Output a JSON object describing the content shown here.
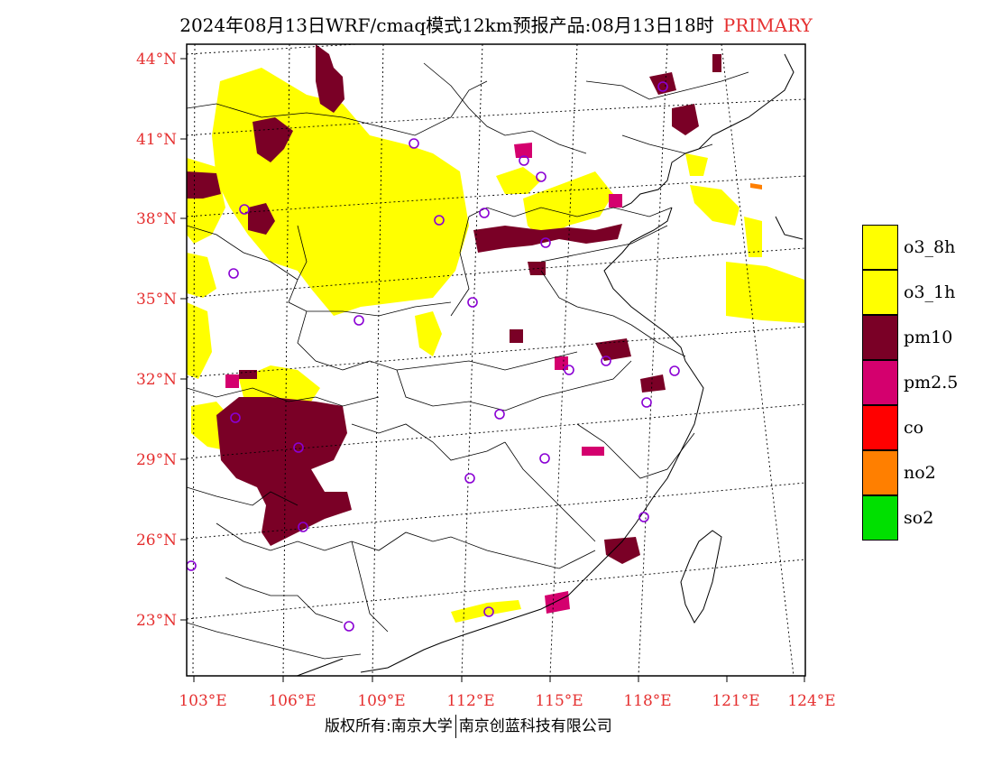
{
  "title": {
    "text": "2024年08月13日WRF/cmaq模式12km预报产品:08月13日18时",
    "tag": "PRIMARY",
    "tag_color": "#e53030"
  },
  "axes": {
    "lat_labels": [
      "44°N",
      "41°N",
      "38°N",
      "35°N",
      "32°N",
      "29°N",
      "26°N",
      "23°N"
    ],
    "lon_labels": [
      "103°E",
      "106°E",
      "109°E",
      "112°E",
      "115°E",
      "118°E",
      "121°E",
      "124°E"
    ],
    "label_color": "#e53030"
  },
  "legend": [
    {
      "name": "o3_8h",
      "color": "#ffff00"
    },
    {
      "name": "o3_1h",
      "color": "#ffff00"
    },
    {
      "name": "pm10",
      "color": "#7a0026"
    },
    {
      "name": "pm2.5",
      "color": "#d4006e"
    },
    {
      "name": "co",
      "color": "#ff0000"
    },
    {
      "name": "no2",
      "color": "#ff7f00"
    },
    {
      "name": "so2",
      "color": "#00e000"
    }
  ],
  "footer": {
    "left": "版权所有:南京大学",
    "right": "南京创蓝科技有限公司"
  },
  "map_symbols": {
    "station_marker": "circle-outline",
    "station_color": "#8a00d4"
  }
}
